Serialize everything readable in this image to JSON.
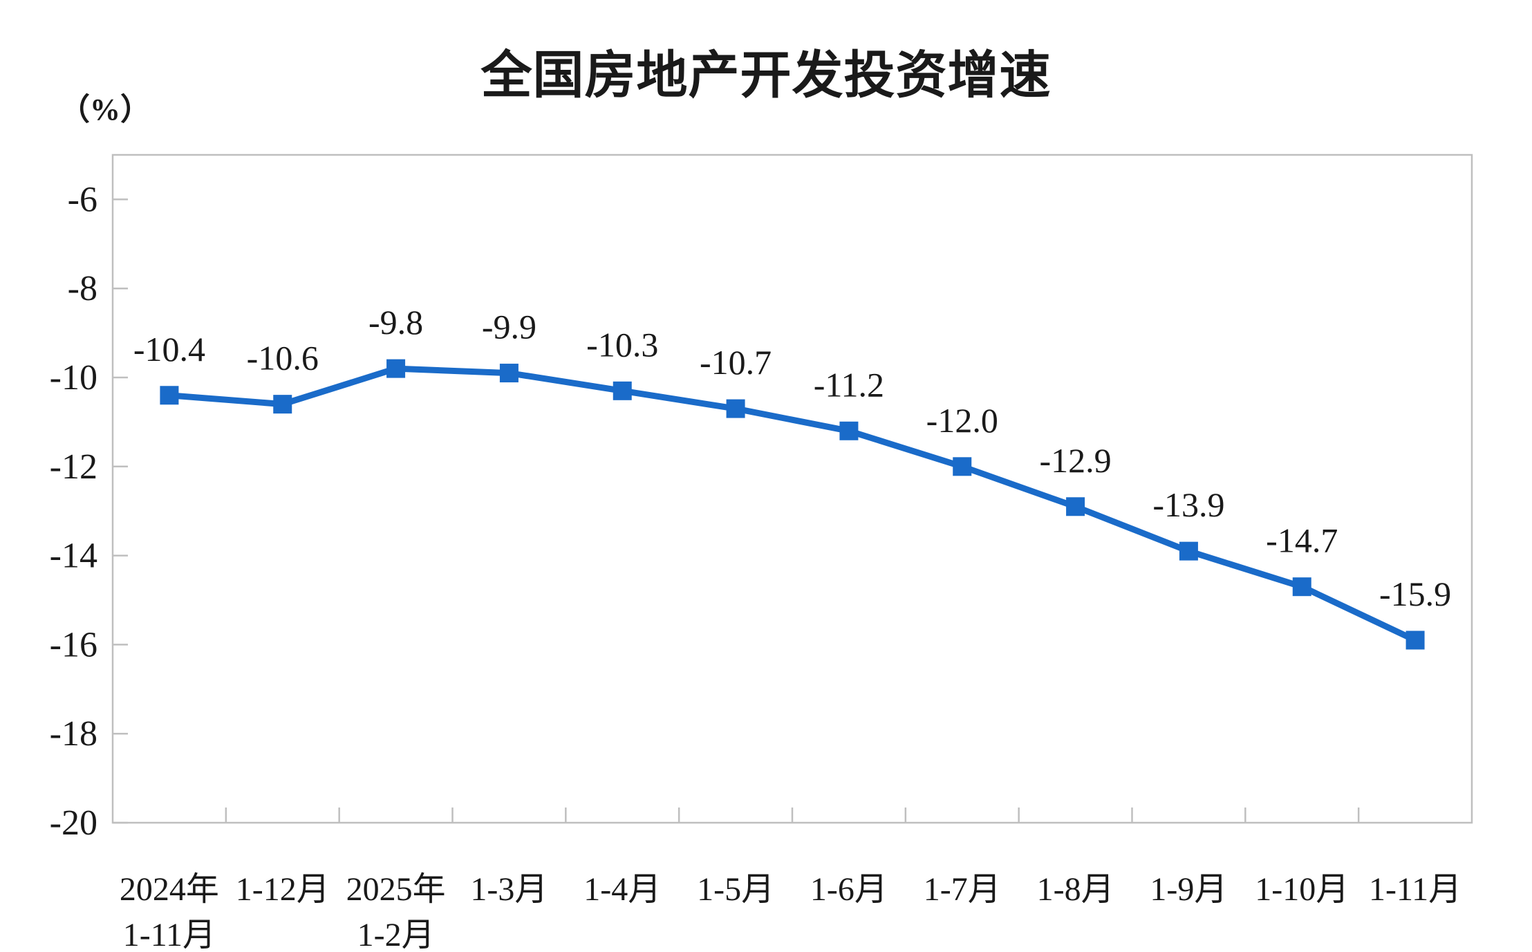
{
  "chart_data": {
    "type": "line",
    "title": "全国房地产开发投资增速",
    "unit_label": "（%）",
    "categories": [
      {
        "lines": [
          "2024年",
          "1-11月"
        ]
      },
      {
        "lines": [
          "1-12月"
        ]
      },
      {
        "lines": [
          "2025年",
          "1-2月"
        ]
      },
      {
        "lines": [
          "1-3月"
        ]
      },
      {
        "lines": [
          "1-4月"
        ]
      },
      {
        "lines": [
          "1-5月"
        ]
      },
      {
        "lines": [
          "1-6月"
        ]
      },
      {
        "lines": [
          "1-7月"
        ]
      },
      {
        "lines": [
          "1-8月"
        ]
      },
      {
        "lines": [
          "1-9月"
        ]
      },
      {
        "lines": [
          "1-10月"
        ]
      },
      {
        "lines": [
          "1-11月"
        ]
      }
    ],
    "values": [
      -10.4,
      -10.6,
      -9.8,
      -9.9,
      -10.3,
      -10.7,
      -11.2,
      -12.0,
      -12.9,
      -13.9,
      -14.7,
      -15.9
    ],
    "value_labels": [
      "-10.4",
      "-10.6",
      "-9.8",
      "-9.9",
      "-10.3",
      "-10.7",
      "-11.2",
      "-12.0",
      "-12.9",
      "-13.9",
      "-14.7",
      "-15.9"
    ],
    "y_axis": {
      "min": -20,
      "max": -5,
      "tick_values": [
        -6,
        -8,
        -10,
        -12,
        -14,
        -16,
        -18,
        -20
      ],
      "tick_labels": [
        "-6",
        "-8",
        "-10",
        "-12",
        "-14",
        "-16",
        "-18",
        "-20"
      ]
    },
    "grid": false,
    "legend": false,
    "marker": "square",
    "colors": {
      "line": "#1A6BC9",
      "marker": "#1A6BC9",
      "axis": "#BFBFBF",
      "text": "#1A1A1A"
    }
  }
}
